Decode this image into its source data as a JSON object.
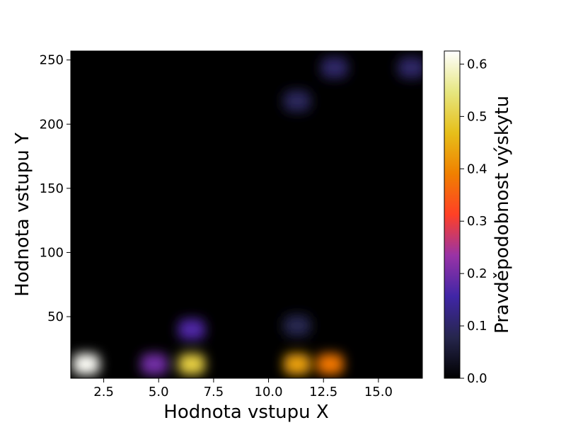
{
  "chart_data": {
    "type": "heatmap",
    "title": "",
    "xlabel": "Hodnota vstupu X",
    "ylabel": "Hodnota vstupu Y",
    "xlim": [
      1,
      17
    ],
    "ylim": [
      2,
      257
    ],
    "x_ticks": [
      2.5,
      5.0,
      7.5,
      10.0,
      12.5,
      15.0
    ],
    "x_tick_labels": [
      "2.5",
      "5.0",
      "7.5",
      "10.0",
      "12.5",
      "15.0"
    ],
    "y_ticks": [
      50,
      100,
      150,
      200,
      250
    ],
    "y_tick_labels": [
      "50",
      "100",
      "150",
      "200",
      "250"
    ],
    "colorbar": {
      "label": "Pravděpodobnost výskytu",
      "colormap": "CMRmap",
      "range": [
        0,
        0.625
      ],
      "ticks": [
        0.0,
        0.1,
        0.2,
        0.3,
        0.4,
        0.5,
        0.6
      ],
      "tick_labels": [
        "0.0",
        "0.1",
        "0.2",
        "0.3",
        "0.4",
        "0.5",
        "0.6"
      ]
    },
    "hotspots": [
      {
        "x": 1.7,
        "y": 13,
        "value": 0.62
      },
      {
        "x": 4.8,
        "y": 13,
        "value": 0.2
      },
      {
        "x": 6.5,
        "y": 13,
        "value": 0.5
      },
      {
        "x": 6.5,
        "y": 40,
        "value": 0.17
      },
      {
        "x": 11.3,
        "y": 13,
        "value": 0.43
      },
      {
        "x": 12.8,
        "y": 13,
        "value": 0.38
      },
      {
        "x": 11.3,
        "y": 43,
        "value": 0.08
      },
      {
        "x": 11.3,
        "y": 218,
        "value": 0.09
      },
      {
        "x": 13.0,
        "y": 244,
        "value": 0.1
      },
      {
        "x": 16.5,
        "y": 244,
        "value": 0.1
      }
    ],
    "grid": false,
    "legend": "none"
  }
}
